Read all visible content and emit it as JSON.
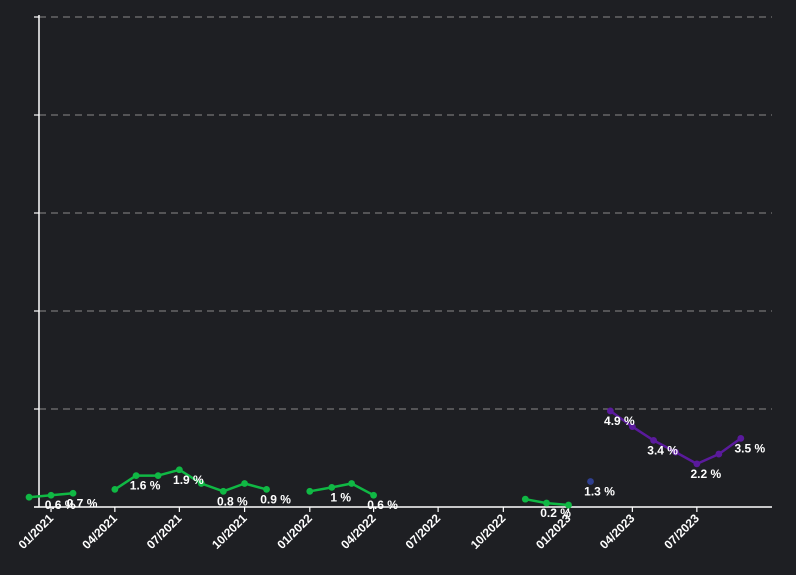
{
  "chart_data": {
    "type": "line",
    "title": "",
    "xlabel": "",
    "ylabel": "",
    "y_tick_count": 6,
    "ylim": [
      0,
      25
    ],
    "x_range": [
      "2020-12-15",
      "2023-10-15"
    ],
    "x_ticks": [
      {
        "date": "2021-01-01",
        "label": "01/2021"
      },
      {
        "date": "2021-04-01",
        "label": "04/2021"
      },
      {
        "date": "2021-07-01",
        "label": "07/2021"
      },
      {
        "date": "2021-10-01",
        "label": "10/2021"
      },
      {
        "date": "2022-01-01",
        "label": "01/2022"
      },
      {
        "date": "2022-04-01",
        "label": "04/2022"
      },
      {
        "date": "2022-07-01",
        "label": "07/2022"
      },
      {
        "date": "2022-10-01",
        "label": "10/2022"
      },
      {
        "date": "2023-01-01",
        "label": "01/2023"
      },
      {
        "date": "2023-04-01",
        "label": "04/2023"
      },
      {
        "date": "2023-07-01",
        "label": "07/2023"
      }
    ],
    "grid": true,
    "series": [
      {
        "color": "#10b844",
        "segments": [
          [
            {
              "x": "2020-12-01",
              "y": 0.5
            },
            {
              "x": "2021-01-01",
              "y": 0.6,
              "label": "0.6 %"
            },
            {
              "x": "2021-02-01",
              "y": 0.7,
              "label": "0.7 %"
            }
          ],
          [
            {
              "x": "2021-04-01",
              "y": 0.9
            },
            {
              "x": "2021-05-01",
              "y": 1.6,
              "label": "1.6 %"
            },
            {
              "x": "2021-06-01",
              "y": 1.6
            },
            {
              "x": "2021-07-01",
              "y": 1.9,
              "label": "1.9 %"
            },
            {
              "x": "2021-08-01",
              "y": 1.2
            },
            {
              "x": "2021-09-01",
              "y": 0.8,
              "label": "0.8 %"
            },
            {
              "x": "2021-10-01",
              "y": 1.2
            },
            {
              "x": "2021-11-01",
              "y": 0.9,
              "label": "0.9 %"
            }
          ],
          [
            {
              "x": "2022-01-01",
              "y": 0.8
            },
            {
              "x": "2022-02-01",
              "y": 1.0,
              "label": "1 %"
            },
            {
              "x": "2022-03-01",
              "y": 1.2
            },
            {
              "x": "2022-04-01",
              "y": 0.6,
              "label": "0.6 %"
            }
          ],
          [
            {
              "x": "2022-11-01",
              "y": 0.4
            },
            {
              "x": "2022-12-01",
              "y": 0.2,
              "label": "0.2 %"
            },
            {
              "x": "2023-01-01",
              "y": 0.1
            }
          ]
        ]
      },
      {
        "color": "#2f3f8f",
        "segments": [
          [
            {
              "x": "2023-02-01",
              "y": 1.3,
              "label": "1.3 %"
            }
          ]
        ]
      },
      {
        "color": "#5a1a9c",
        "segments": [
          [
            {
              "x": "2023-03-01",
              "y": 4.9,
              "label": "4.9 %"
            },
            {
              "x": "2023-04-01",
              "y": 4.1
            },
            {
              "x": "2023-05-01",
              "y": 3.4,
              "label": "3.4 %"
            },
            {
              "x": "2023-06-01",
              "y": 2.8
            },
            {
              "x": "2023-07-01",
              "y": 2.2,
              "label": "2.2 %"
            },
            {
              "x": "2023-08-01",
              "y": 2.7
            },
            {
              "x": "2023-09-01",
              "y": 3.5,
              "label": "3.5 %"
            }
          ]
        ]
      }
    ]
  }
}
